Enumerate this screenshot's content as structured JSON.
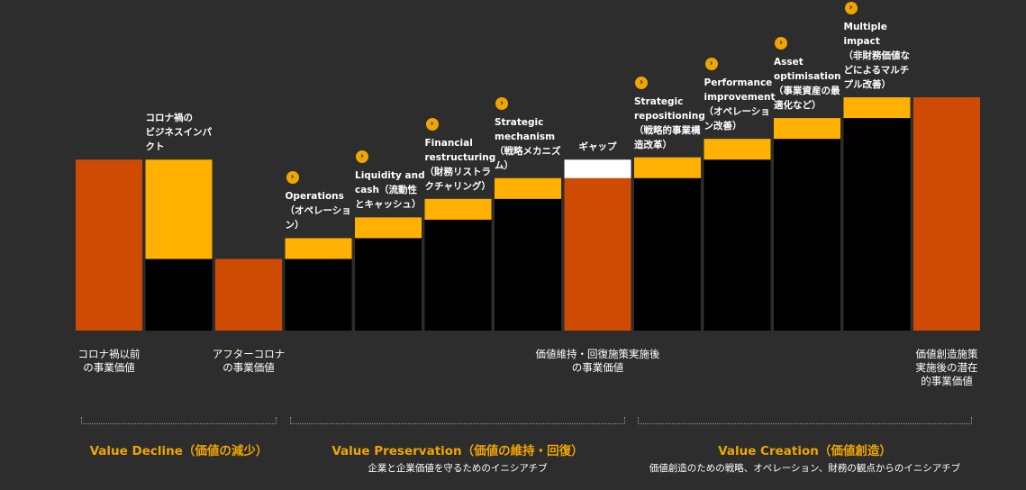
{
  "chart_data": {
    "type": "bar",
    "subtype": "waterfall",
    "ylim": [
      0,
      100
    ],
    "colors": {
      "baseline": "#cf4b04",
      "increment": "#ffb000",
      "cumulative": "#000000",
      "gap": "#ffffff",
      "accent_text": "#f0a500"
    },
    "bars": [
      {
        "kind": "baseline",
        "value": 74,
        "label": ""
      },
      {
        "kind": "increment",
        "base": 31,
        "delta": 43,
        "label": "コロナ禍の\nビジネスインパ\nクト"
      },
      {
        "kind": "baseline",
        "value": 31,
        "label": ""
      },
      {
        "kind": "increment",
        "base": 31,
        "delta": 9,
        "label": "Operations\n（オペレーショ\nン）",
        "marker": true
      },
      {
        "kind": "increment",
        "base": 40,
        "delta": 9,
        "label": "Liquidity and\ncash（流動性\nとキャッシュ）",
        "marker": true
      },
      {
        "kind": "increment",
        "base": 48,
        "delta": 9,
        "label": "Financial\nrestructuring\n（財務リストラ\nクチャリング）",
        "marker": true
      },
      {
        "kind": "increment",
        "base": 57,
        "delta": 9,
        "label": "Strategic\nmechanism\n（戦略メカニズ\nム）",
        "marker": true
      },
      {
        "kind": "gap",
        "base": 66,
        "delta": 8,
        "label": "ギャップ"
      },
      {
        "kind": "increment",
        "base": 66,
        "delta": 9,
        "label": "Strategic\nrepositioning\n（戦略的事業構\n造改革）",
        "marker": true
      },
      {
        "kind": "increment",
        "base": 74,
        "delta": 9,
        "label": "Performance\nimprovement\n（オペレーショ\nン改善）",
        "marker": true
      },
      {
        "kind": "increment",
        "base": 83,
        "delta": 9,
        "label": "Asset\noptimisation\n（事業資産の最\n適化など）",
        "marker": true
      },
      {
        "kind": "increment",
        "base": 92,
        "delta": 9,
        "label": "Multiple\nimpact\n（非財務価値な\nどによるマルチ\nプル改善）",
        "marker": true
      },
      {
        "kind": "baseline",
        "value": 101,
        "label": ""
      }
    ],
    "category_labels": [
      {
        "bar": 0,
        "text": "コロナ禍以前\nの事業価値"
      },
      {
        "bar": 2,
        "text": "アフターコロナ\nの事業価値"
      },
      {
        "bar": 7,
        "text": "価値維持・回復施策実施後\nの事業価値"
      },
      {
        "bar": 12,
        "text": "価値創造施策\n実施後の潜在\n的事業価値"
      }
    ],
    "phases": [
      {
        "title": "Value Decline（価値の減少）",
        "subtitle": ""
      },
      {
        "title": "Value Preservation（価値の維持・回復）",
        "subtitle": "企業と企業価値を守るためのイニシアチブ"
      },
      {
        "title": "Value Creation（価値創造）",
        "subtitle": "価値創造のための戦略、オペレーション、財務の観点からのイニシアチブ"
      }
    ]
  }
}
